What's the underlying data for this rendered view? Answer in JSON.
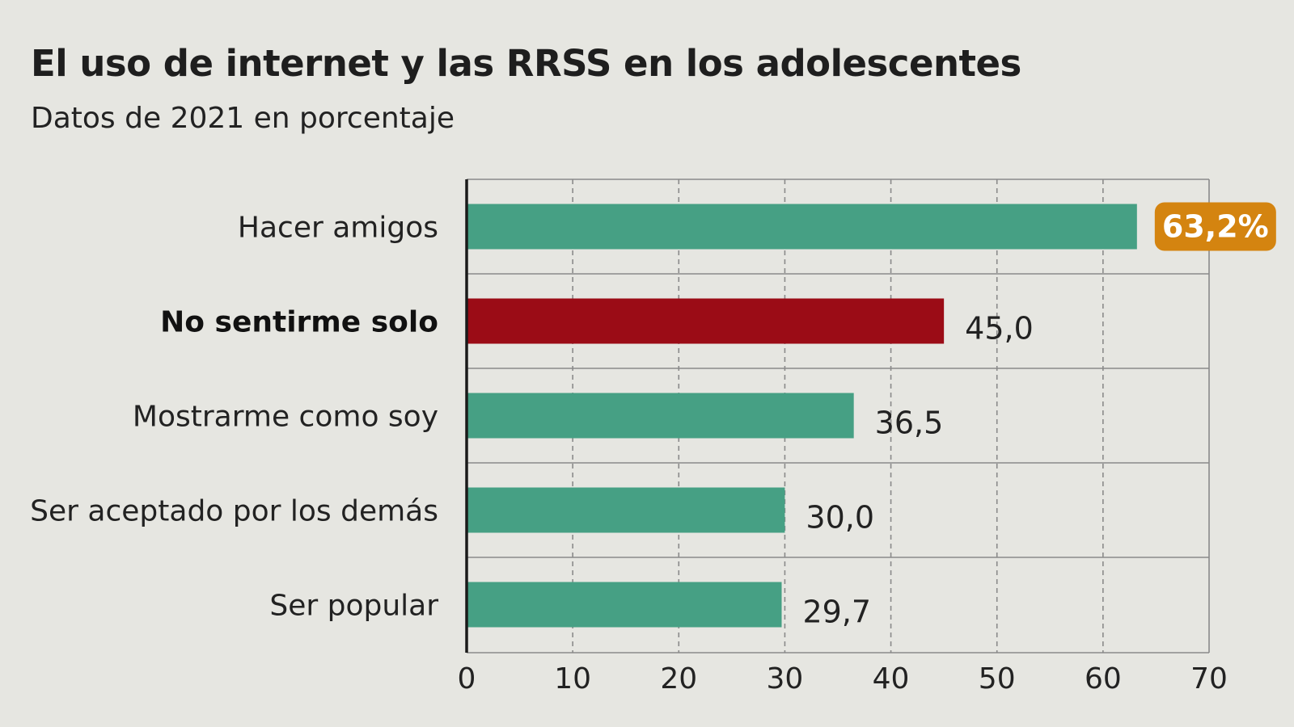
{
  "header": {
    "title": "El uso de internet y las RRSS en los adolescentes",
    "subtitle": "Datos de 2021 en porcentaje"
  },
  "colors": {
    "default_bar": "#46a084",
    "highlight_bar": "#9b0c16",
    "badge": "#d48410",
    "grid": "#8a8a8a",
    "axis": "#1a1a1a",
    "background": "#e6e6e1"
  },
  "chart_data": {
    "type": "bar",
    "orientation": "horizontal",
    "title": "El uso de internet y las RRSS en los adolescentes",
    "subtitle": "Datos de 2021 en porcentaje",
    "categories": [
      "Hacer amigos",
      "No sentirme solo",
      "Mostrarme como soy",
      "Ser aceptado por los demás",
      "Ser popular"
    ],
    "values": [
      63.2,
      45.0,
      36.5,
      30.0,
      29.7
    ],
    "value_labels": [
      "63,2%",
      "45,0",
      "36,5",
      "30,0",
      "29,7"
    ],
    "highlighted_category": "No sentirme solo",
    "badge_category": "Hacer amigos",
    "xlim": [
      0,
      70
    ],
    "xticks": [
      0,
      10,
      20,
      30,
      40,
      50,
      60,
      70
    ],
    "xtick_labels": [
      "0",
      "10",
      "20",
      "30",
      "40",
      "50",
      "60",
      "70"
    ],
    "grid": true,
    "xlabel": "",
    "ylabel": ""
  }
}
